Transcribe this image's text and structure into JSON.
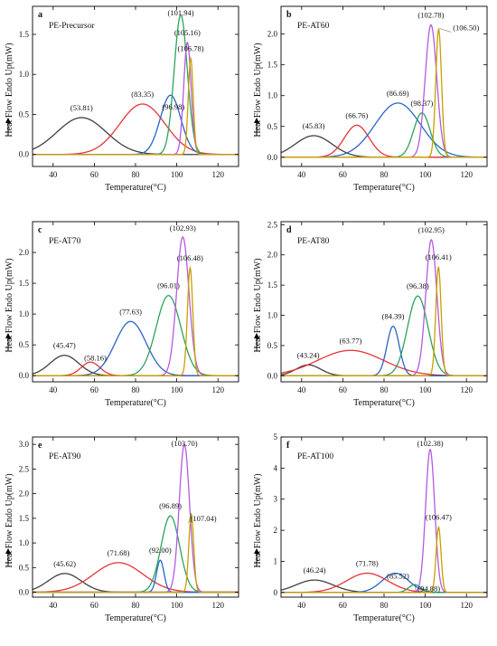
{
  "figure": {
    "colors": [
      "#404040",
      "#e8343a",
      "#2a64c8",
      "#2ca45a",
      "#b55ae0",
      "#c8a000"
    ],
    "yaxis_arrow": "up-arrow-icon"
  },
  "chart_data": [
    {
      "type": "line",
      "panel_letter": "a",
      "sample_label": "PE-Precursor",
      "xlabel": "Temperature(°C)",
      "ylabel": "Heat Flow Endo Up(mW)",
      "xlim": [
        30,
        130
      ],
      "ylim": [
        -0.15,
        1.85
      ],
      "xticks": [
        40,
        60,
        80,
        100,
        120
      ],
      "yticks": [
        0.0,
        0.5,
        1.0,
        1.5
      ],
      "ytick_labels": [
        "0.0",
        "0.5",
        "1.0",
        "1.5"
      ],
      "series": [
        {
          "peak": 53.81,
          "height": 0.46,
          "width": 12.0,
          "label": "(53.81)"
        },
        {
          "peak": 83.35,
          "height": 0.63,
          "width": 11.0,
          "label": "(83.35)"
        },
        {
          "peak": 96.98,
          "height": 0.74,
          "width": 5.0,
          "label": "(96.98)"
        },
        {
          "peak": 101.94,
          "height": 1.74,
          "width": 3.2,
          "label": "(101.94)"
        },
        {
          "peak": 105.16,
          "height": 1.4,
          "width": 1.8,
          "label": "(105.16)"
        },
        {
          "peak": 106.78,
          "height": 1.2,
          "width": 1.2,
          "label": "(106.78)"
        }
      ]
    },
    {
      "type": "line",
      "panel_letter": "b",
      "sample_label": "PE-AT60",
      "xlabel": "Temperature(°C)",
      "ylabel": "Heat Flow Endo Up(mW)",
      "xlim": [
        30,
        130
      ],
      "ylim": [
        -0.15,
        2.45
      ],
      "xticks": [
        40,
        60,
        80,
        100,
        120
      ],
      "yticks": [
        0.0,
        0.5,
        1.0,
        1.5,
        2.0
      ],
      "ytick_labels": [
        "0.0",
        "0.5",
        "1.0",
        "1.5",
        "2.0"
      ],
      "series": [
        {
          "peak": 45.83,
          "height": 0.35,
          "width": 9.0,
          "label": "(45.83)"
        },
        {
          "peak": 66.76,
          "height": 0.52,
          "width": 6.0,
          "label": "(66.76)"
        },
        {
          "peak": 86.69,
          "height": 0.88,
          "width": 11.0,
          "label": "(86.69)"
        },
        {
          "peak": 98.37,
          "height": 0.72,
          "width": 4.0,
          "label": "(98.37)"
        },
        {
          "peak": 102.78,
          "height": 2.15,
          "width": 2.8,
          "label": "(102.78)"
        },
        {
          "peak": 106.5,
          "height": 2.08,
          "width": 1.4,
          "label": "(106.50)"
        }
      ]
    },
    {
      "type": "line",
      "panel_letter": "c",
      "sample_label": "PE-AT70",
      "xlabel": "Temperature(°C)",
      "ylabel": "Heat Flow Endo Up(mW)",
      "xlim": [
        30,
        130
      ],
      "ylim": [
        -0.1,
        2.5
      ],
      "xticks": [
        40,
        60,
        80,
        100,
        120
      ],
      "yticks": [
        0.0,
        0.5,
        1.0,
        1.5,
        2.0
      ],
      "ytick_labels": [
        "0.0",
        "0.5",
        "1.0",
        "1.5",
        "2.0"
      ],
      "series": [
        {
          "peak": 45.47,
          "height": 0.33,
          "width": 7.0,
          "label": "(45.47)"
        },
        {
          "peak": 58.16,
          "height": 0.22,
          "width": 4.5,
          "label": "(58.16)"
        },
        {
          "peak": 77.63,
          "height": 0.88,
          "width": 7.5,
          "label": "(77.63)"
        },
        {
          "peak": 96.01,
          "height": 1.3,
          "width": 6.0,
          "label": "(96.01)"
        },
        {
          "peak": 102.93,
          "height": 2.25,
          "width": 3.0,
          "label": "(102.93)"
        },
        {
          "peak": 106.48,
          "height": 1.75,
          "width": 1.3,
          "label": "(106.48)"
        }
      ]
    },
    {
      "type": "line",
      "panel_letter": "d",
      "sample_label": "PE-AT80",
      "xlabel": "Temperature(°C)",
      "ylabel": "Heat Flow Endo Up(mW)",
      "xlim": [
        30,
        130
      ],
      "ylim": [
        -0.1,
        2.55
      ],
      "xticks": [
        40,
        60,
        80,
        100,
        120
      ],
      "yticks": [
        0.0,
        0.5,
        1.0,
        1.5,
        2.0,
        2.5
      ],
      "ytick_labels": [
        "0.0",
        "0.5",
        "1.0",
        "1.5",
        "2.0",
        "2.5"
      ],
      "series": [
        {
          "peak": 43.24,
          "height": 0.18,
          "width": 6.0,
          "label": "(43.24)"
        },
        {
          "peak": 63.77,
          "height": 0.42,
          "width": 16.0,
          "label": "(63.77)"
        },
        {
          "peak": 84.39,
          "height": 0.82,
          "width": 3.0,
          "label": "(84.39)"
        },
        {
          "peak": 96.38,
          "height": 1.32,
          "width": 5.0,
          "label": "(96.38)"
        },
        {
          "peak": 102.95,
          "height": 2.25,
          "width": 2.7,
          "label": "(102.95)"
        },
        {
          "peak": 106.41,
          "height": 1.8,
          "width": 1.3,
          "label": "(106.41)"
        }
      ]
    },
    {
      "type": "line",
      "panel_letter": "e",
      "sample_label": "PE-AT90",
      "xlabel": "Temperature(°C)",
      "ylabel": "Heat Flow Endo Up(mW)",
      "xlim": [
        30,
        130
      ],
      "ylim": [
        -0.1,
        3.15
      ],
      "xticks": [
        40,
        60,
        80,
        100,
        120
      ],
      "yticks": [
        0.0,
        0.5,
        1.0,
        1.5,
        2.0,
        2.5,
        3.0
      ],
      "ytick_labels": [
        "0.0",
        "0.5",
        "1.0",
        "1.5",
        "2.0",
        "2.5",
        "3.0"
      ],
      "series": [
        {
          "peak": 45.62,
          "height": 0.38,
          "width": 8.0,
          "label": "(45.62)"
        },
        {
          "peak": 71.68,
          "height": 0.6,
          "width": 12.0,
          "label": "(71.68)"
        },
        {
          "peak": 92.0,
          "height": 0.65,
          "width": 1.8,
          "label": "(92.00)"
        },
        {
          "peak": 96.89,
          "height": 1.55,
          "width": 4.5,
          "label": "(96.89)"
        },
        {
          "peak": 103.7,
          "height": 3.0,
          "width": 2.5,
          "label": "(103.70)"
        },
        {
          "peak": 107.04,
          "height": 1.58,
          "width": 1.2,
          "label": "(107.04)"
        }
      ]
    },
    {
      "type": "line",
      "panel_letter": "f",
      "sample_label": "PE-AT100",
      "xlabel": "Temperature(°C)",
      "ylabel": "Heat Flow Endo Up(mW)",
      "xlim": [
        30,
        130
      ],
      "ylim": [
        -0.15,
        5.0
      ],
      "xticks": [
        40,
        60,
        80,
        100,
        120
      ],
      "yticks": [
        0,
        1,
        2,
        3,
        4,
        5
      ],
      "ytick_labels": [
        "0",
        "1",
        "2",
        "3",
        "4",
        "5"
      ],
      "series": [
        {
          "peak": 46.24,
          "height": 0.4,
          "width": 9.0,
          "label": "(46.24)"
        },
        {
          "peak": 71.78,
          "height": 0.62,
          "width": 10.0,
          "label": "(71.78)"
        },
        {
          "peak": 85.52,
          "height": 0.62,
          "width": 6.5,
          "label": "(85.52)"
        },
        {
          "peak": 94.88,
          "height": 0.25,
          "width": 3.0,
          "label": "(94.88)"
        },
        {
          "peak": 102.38,
          "height": 4.6,
          "width": 2.2,
          "label": "(102.38)"
        },
        {
          "peak": 106.47,
          "height": 2.1,
          "width": 1.2,
          "label": "(106.47)"
        }
      ]
    }
  ]
}
